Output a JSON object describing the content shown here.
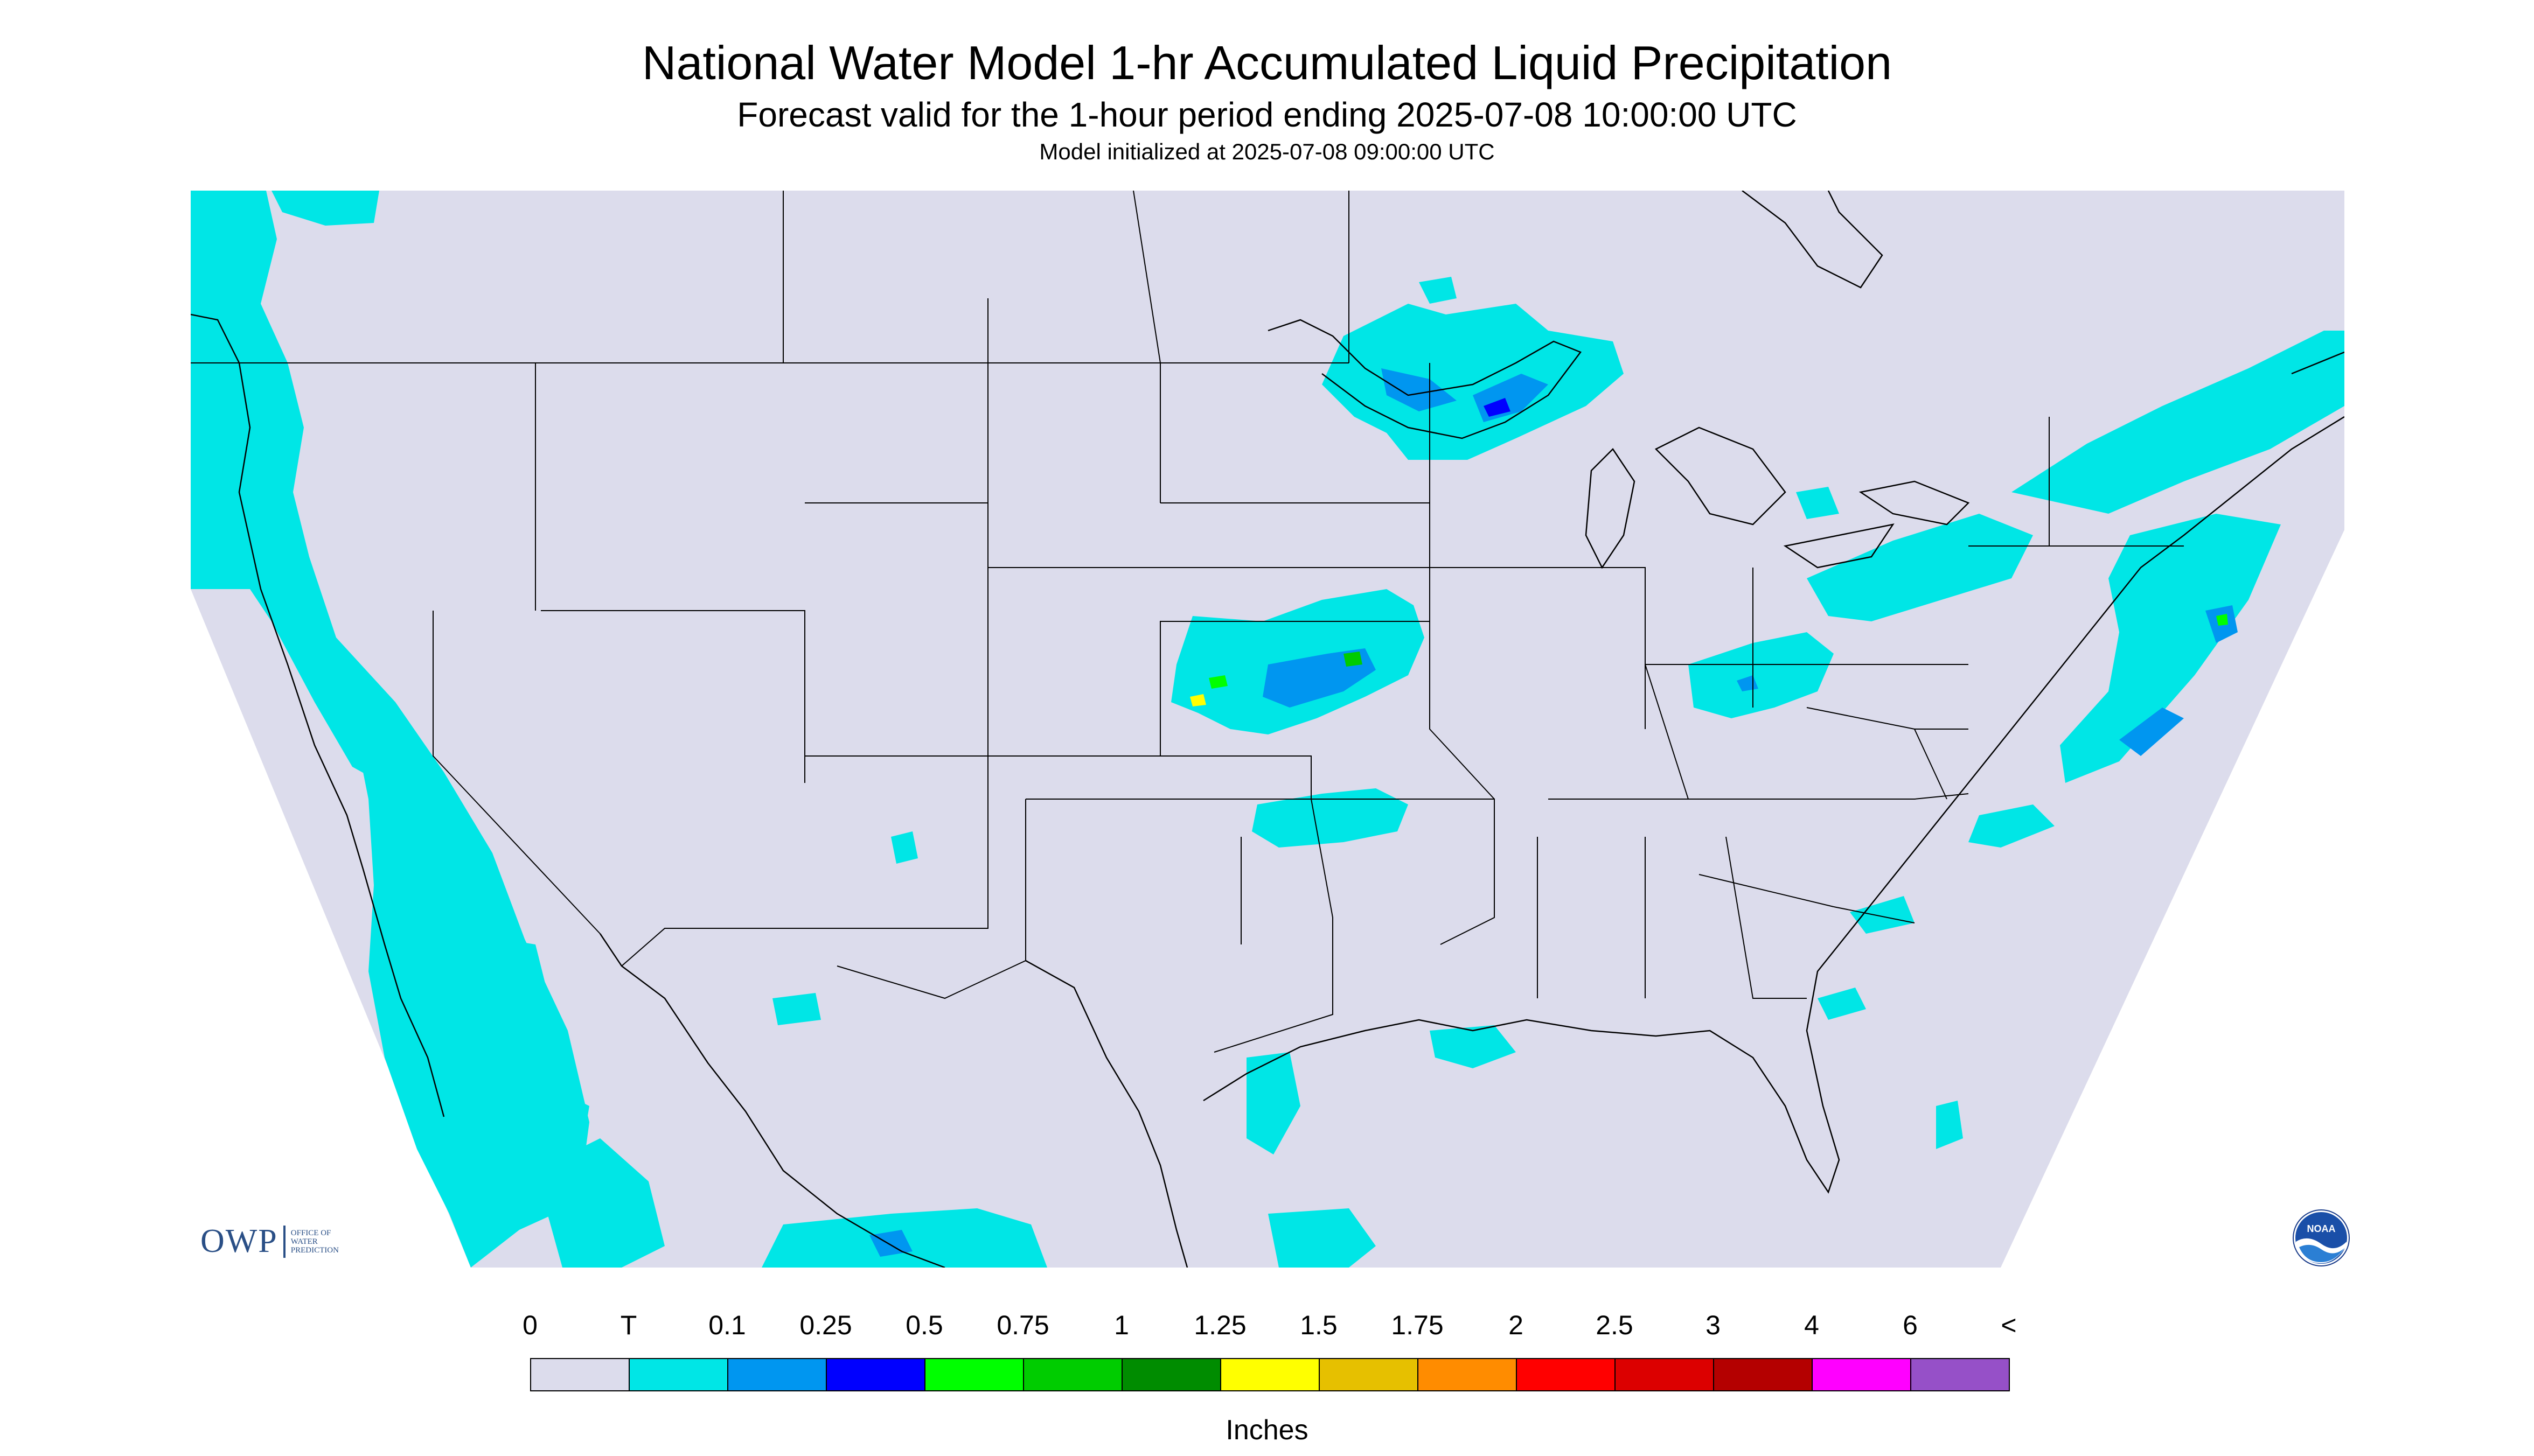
{
  "header": {
    "title": "National Water Model 1-hr Accumulated Liquid Precipitation",
    "subtitle": "Forecast valid for the 1-hour period ending 2025-07-08 10:00:00 UTC",
    "init": "Model initialized at 2025-07-08 09:00:00 UTC"
  },
  "map": {
    "background_color": "#dcdcec",
    "outside_color": "#ffffff",
    "boundary_color": "#000000",
    "precip_regions": [
      {
        "name": "Pacific Northwest coast",
        "level": "T"
      },
      {
        "name": "Pacific Ocean off California and Baja",
        "level": "T"
      },
      {
        "name": "Lake Superior / northern Minnesota",
        "level": "T to 0.5"
      },
      {
        "name": "Nebraska, Iowa and Missouri",
        "level": "T to 1.25"
      },
      {
        "name": "Ohio Valley",
        "level": "T to 0.25"
      },
      {
        "name": "Great Lakes and Northeast",
        "level": "T to 0.25"
      },
      {
        "name": "Atlantic off New England",
        "level": "T to 1.25"
      },
      {
        "name": "Gulf of Mexico and Texas coast",
        "level": "T"
      },
      {
        "name": "Atlantic off Southeast US",
        "level": "T"
      }
    ],
    "logo_left": {
      "abbr": "OWP",
      "lines": [
        "OFFICE OF",
        "WATER",
        "PREDICTION"
      ]
    },
    "logo_right": {
      "text": "NOAA"
    }
  },
  "colorbar": {
    "unit": "Inches",
    "tick_labels": [
      "0",
      "T",
      "0.1",
      "0.25",
      "0.5",
      "0.75",
      "1",
      "1.25",
      "1.5",
      "1.75",
      "2",
      "2.5",
      "3",
      "4",
      "6",
      "<"
    ],
    "colors": [
      "#dcdcec",
      "#00e6e6",
      "#0096f0",
      "#0000ff",
      "#00ff00",
      "#00cc00",
      "#008c00",
      "#ffff00",
      "#e6c000",
      "#ff8c00",
      "#ff0000",
      "#dc0000",
      "#b40000",
      "#ff00ff",
      "#9650c8"
    ]
  }
}
